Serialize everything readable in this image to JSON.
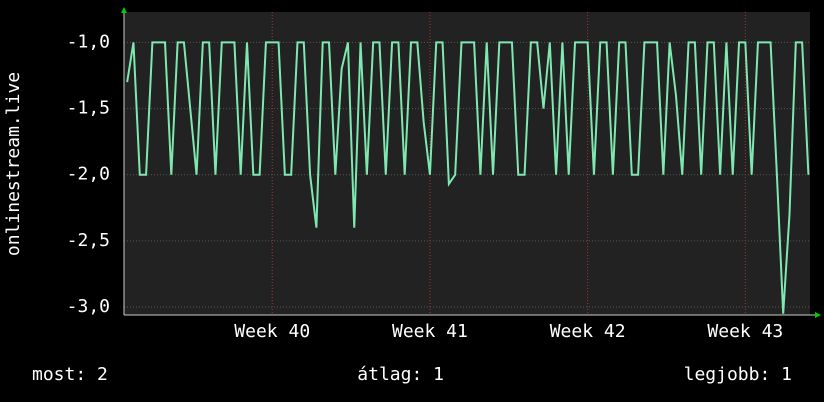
{
  "chart_data": {
    "type": "line",
    "y_label": "onlinestream.live",
    "x": [
      39.08,
      39.12,
      39.16,
      39.2,
      39.24,
      39.28,
      39.32,
      39.36,
      39.4,
      39.44,
      39.48,
      39.52,
      39.56,
      39.6,
      39.64,
      39.68,
      39.72,
      39.76,
      39.8,
      39.84,
      39.88,
      39.92,
      39.96,
      40,
      40.04,
      40.08,
      40.12,
      40.16,
      40.2,
      40.24,
      40.28,
      40.32,
      40.36,
      40.4,
      40.44,
      40.48,
      40.52,
      40.56,
      40.6,
      40.64,
      40.68,
      40.72,
      40.76,
      40.8,
      40.84,
      40.88,
      40.92,
      40.96,
      41,
      41.04,
      41.08,
      41.12,
      41.16,
      41.2,
      41.24,
      41.28,
      41.32,
      41.36,
      41.4,
      41.44,
      41.48,
      41.52,
      41.56,
      41.6,
      41.64,
      41.68,
      41.72,
      41.76,
      41.8,
      41.84,
      41.88,
      41.92,
      41.96,
      42,
      42.04,
      42.08,
      42.12,
      42.16,
      42.2,
      42.24,
      42.28,
      42.32,
      42.36,
      42.4,
      42.44,
      42.48,
      42.52,
      42.56,
      42.6,
      42.64,
      42.68,
      42.72,
      42.76,
      42.8,
      42.84,
      42.88,
      42.92,
      42.96,
      43,
      43.04,
      43.08,
      43.12,
      43.16,
      43.2,
      43.24,
      43.28,
      43.32,
      43.36,
      43.4
    ],
    "series": [
      {
        "name": "onlinestream.live",
        "color": "#7ee8b0",
        "values": [
          -1.3,
          -1,
          -2,
          -2,
          -1,
          -1,
          -1,
          -2,
          -1,
          -1,
          -1.5,
          -2,
          -1,
          -1,
          -2,
          -1,
          -1,
          -1,
          -2,
          -1,
          -2,
          -2,
          -1,
          -1,
          -1,
          -2,
          -2,
          -1,
          -1,
          -2,
          -2.4,
          -1,
          -1,
          -2,
          -1.2,
          -1,
          -2.4,
          -1,
          -2,
          -1,
          -1,
          -2,
          -1,
          -1,
          -2,
          -1,
          -1,
          -1.6,
          -2,
          -1,
          -1,
          -2.07,
          -2,
          -1,
          -1,
          -1,
          -2,
          -1,
          -2,
          -1,
          -1,
          -1,
          -2,
          -2,
          -1,
          -1,
          -1.5,
          -1,
          -2,
          -1,
          -2,
          -1,
          -1,
          -1,
          -2,
          -1,
          -1,
          -2,
          -1,
          -1,
          -2,
          -2,
          -1,
          -1,
          -1,
          -2,
          -1,
          -1.4,
          -2,
          -1,
          -1,
          -2,
          -1,
          -1,
          -2,
          -1,
          -2,
          -1,
          -1,
          -2,
          -1,
          -1,
          -1,
          -2,
          -3.05,
          -2.3,
          -1,
          -1,
          -2
        ]
      }
    ],
    "xlim": [
      39.06,
      43.41
    ],
    "xticks": [
      {
        "value": 40,
        "label": "Week 40"
      },
      {
        "value": 41,
        "label": "Week 41"
      },
      {
        "value": 42,
        "label": "Week 42"
      },
      {
        "value": 43,
        "label": "Week 43"
      }
    ],
    "ylim": [
      -3.06,
      -0.77
    ],
    "yticks": [
      {
        "value": -1,
        "label": "-1,0"
      },
      {
        "value": -1.5,
        "label": "-1,5"
      },
      {
        "value": -2,
        "label": "-2,0"
      },
      {
        "value": -2.5,
        "label": "-2,5"
      },
      {
        "value": -3,
        "label": "-3,0"
      }
    ],
    "grid": true,
    "footer": {
      "current": "most: 2",
      "average": "átlag: 1",
      "best": "legjobb: 1"
    }
  }
}
